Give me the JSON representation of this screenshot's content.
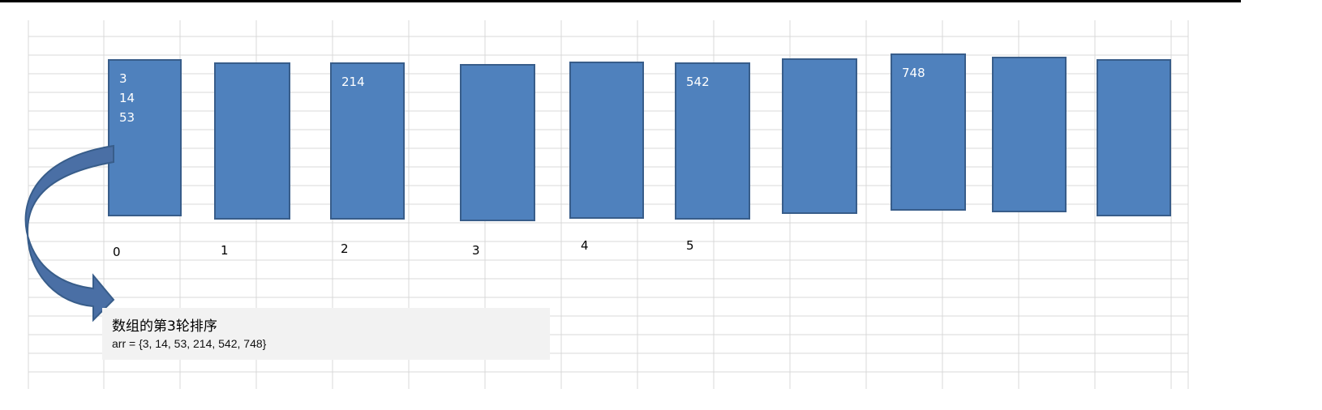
{
  "colors": {
    "bucket_fill": "#4f81bd",
    "bucket_border": "#385d8a",
    "arrow": "#4a6fa5",
    "grid": "#d9d9d9"
  },
  "buckets": [
    {
      "index": "0",
      "values": [
        "3",
        "14",
        "53"
      ]
    },
    {
      "index": "1",
      "values": []
    },
    {
      "index": "2",
      "values": [
        "214"
      ]
    },
    {
      "index": "3",
      "values": []
    },
    {
      "index": "4",
      "values": []
    },
    {
      "index": "5",
      "values": [
        "542"
      ]
    },
    {
      "index": "",
      "values": []
    },
    {
      "index": "",
      "values": [
        "748"
      ]
    },
    {
      "index": "",
      "values": []
    },
    {
      "index": "",
      "values": []
    }
  ],
  "caption": {
    "title": "数组的第3轮排序",
    "array": "arr = {3, 14, 53, 214, 542, 748}"
  }
}
